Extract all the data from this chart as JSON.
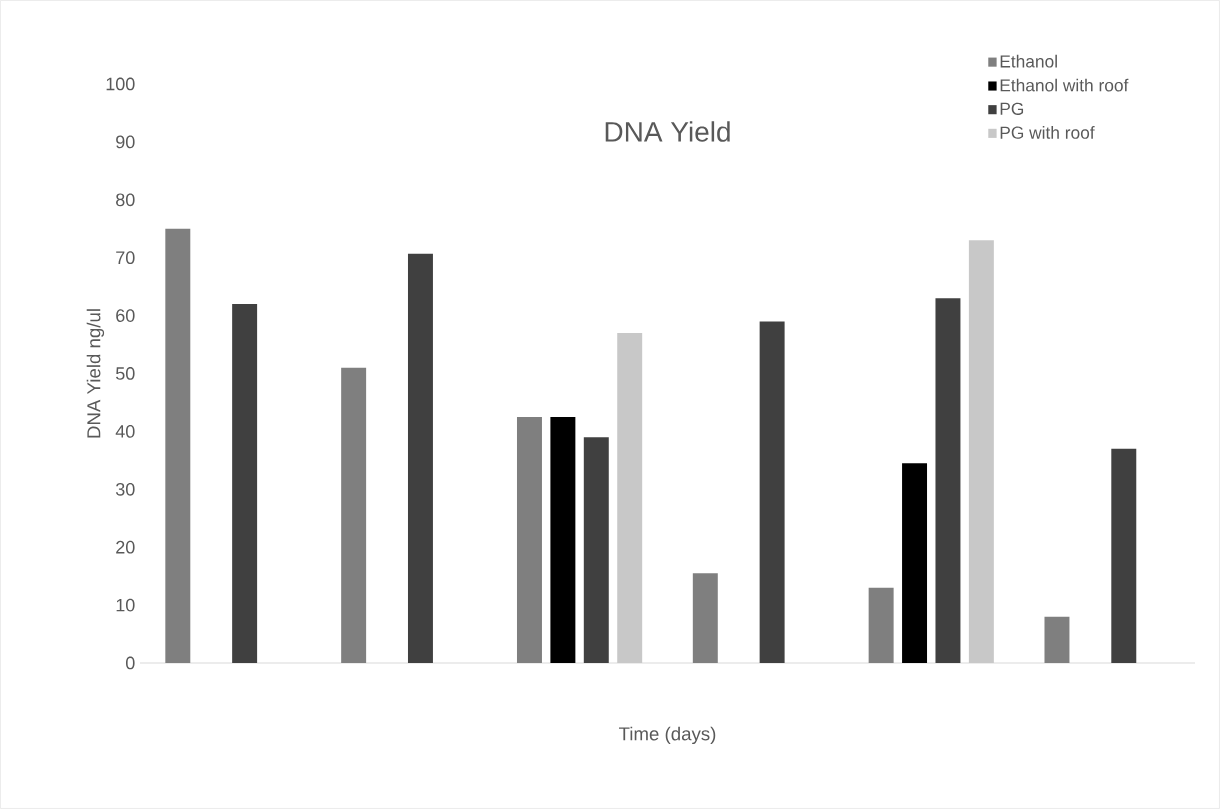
{
  "chart_data": {
    "type": "bar",
    "title": "DNA Yield",
    "xlabel": "Time (days)",
    "ylabel": "DNA Yield ng/ul",
    "categories": [
      null,
      null,
      null,
      null,
      null,
      null
    ],
    "series": [
      {
        "name": "Ethanol",
        "color": "#7f7f7f",
        "values": [
          75,
          51,
          42.5,
          15.5,
          13,
          8
        ]
      },
      {
        "name": "Ethanol with roof",
        "color": "#000000",
        "values": [
          null,
          null,
          42.5,
          null,
          34.5,
          null
        ]
      },
      {
        "name": "PG",
        "color": "#404040",
        "values": [
          62,
          70.7,
          39,
          59,
          63,
          37
        ]
      },
      {
        "name": "PG with roof",
        "color": "#c8c8c8",
        "values": [
          null,
          null,
          57,
          null,
          73,
          null
        ]
      }
    ],
    "ylim": [
      0,
      100
    ],
    "yticks": [
      0,
      10,
      20,
      30,
      40,
      50,
      60,
      70,
      80,
      90,
      100
    ],
    "grid": false,
    "legend": "top right"
  }
}
